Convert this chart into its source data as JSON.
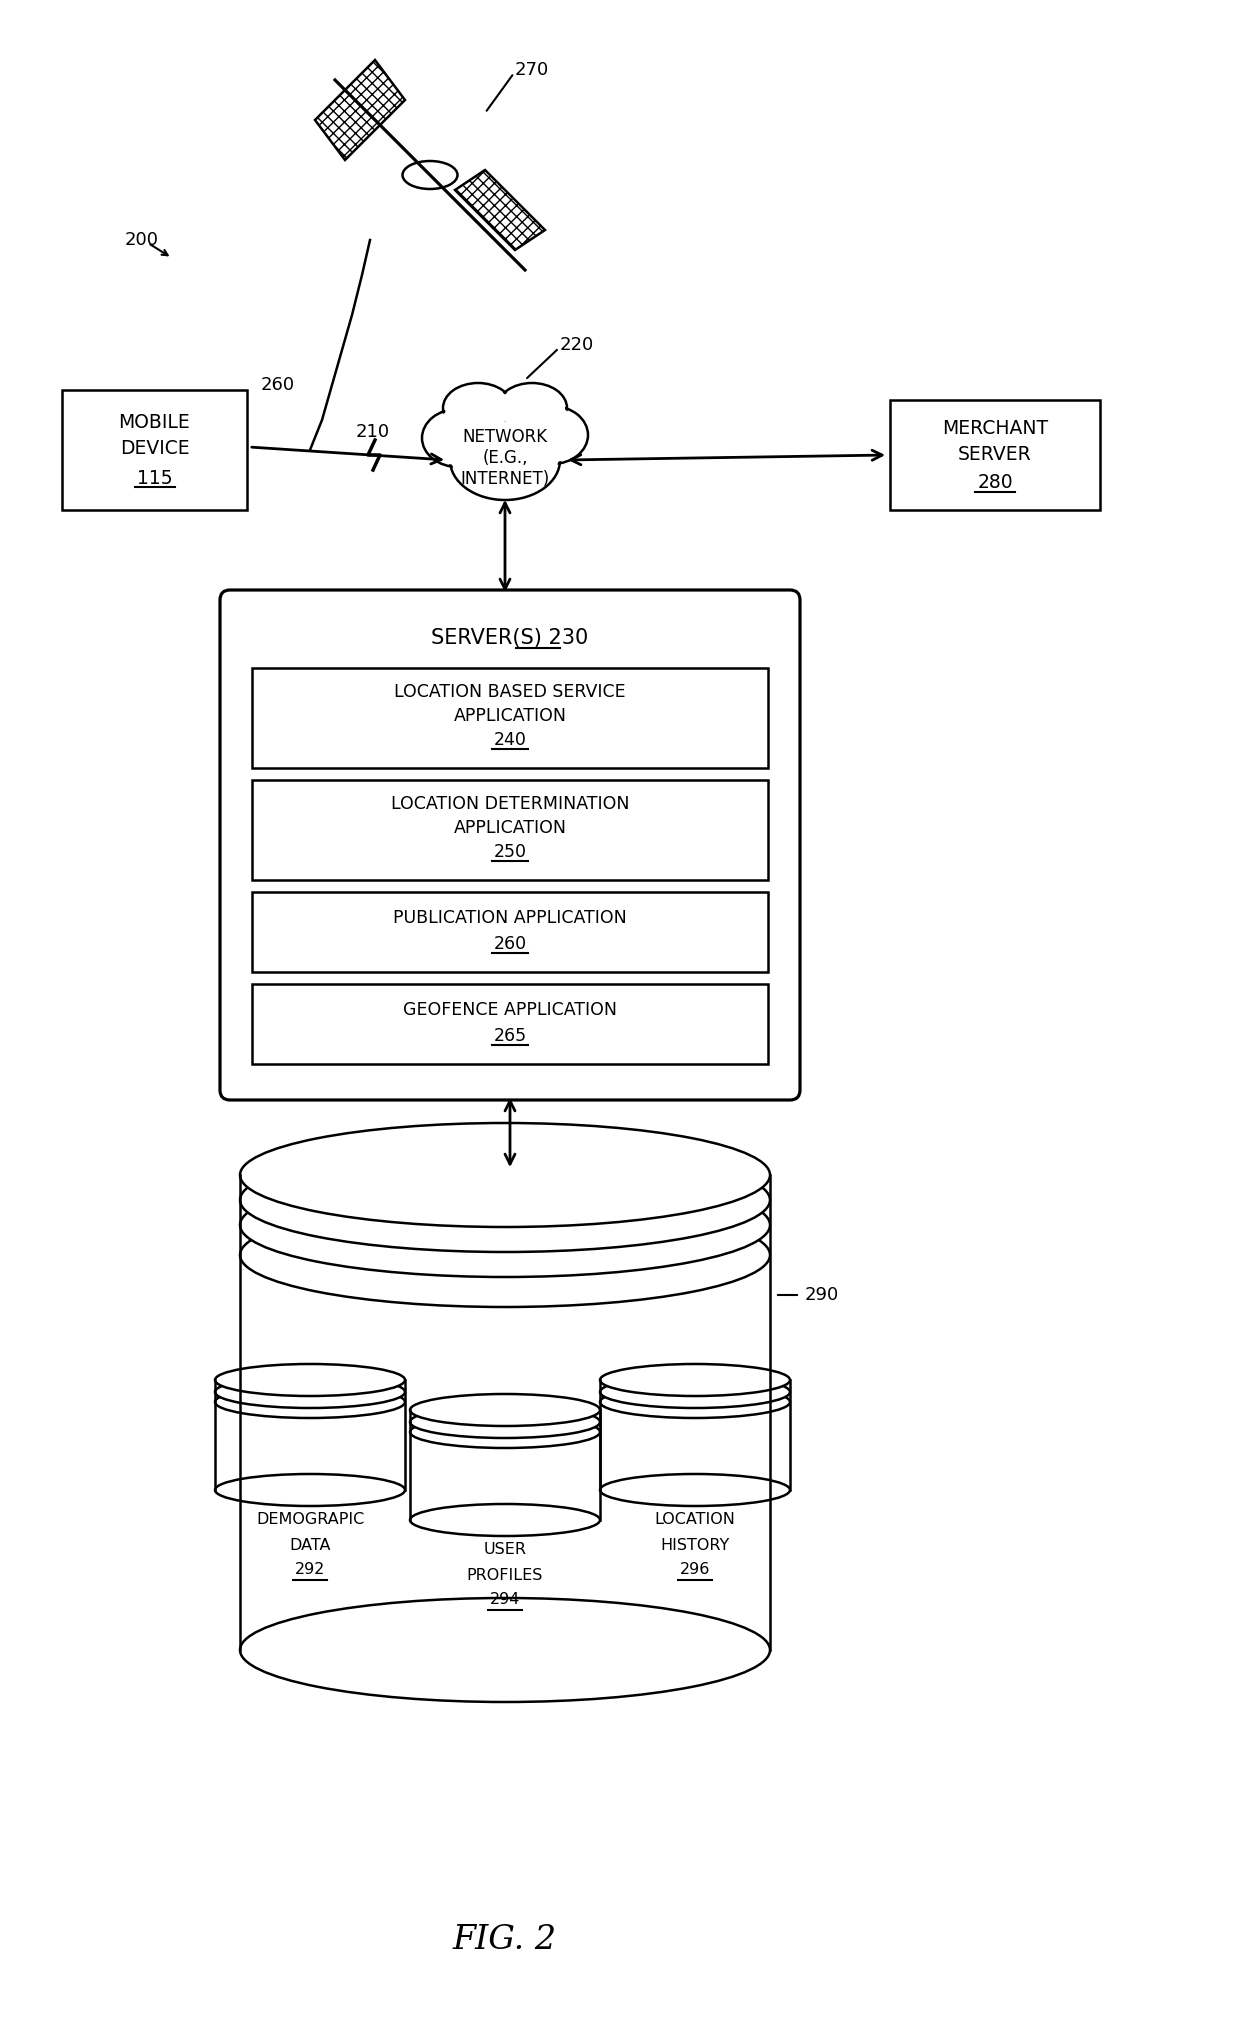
{
  "title": "FIG. 2",
  "bg_color": "#ffffff",
  "text_color": "#000000",
  "line_color": "#000000",
  "mobile_text1": "MOBILE",
  "mobile_text2": "DEVICE",
  "mobile_num": "115",
  "merchant_text1": "MERCHANT",
  "merchant_text2": "SERVER",
  "merchant_num": "280",
  "network_text1": "NETWORK",
  "network_text2": "(E.G.,",
  "network_text3": "INTERNET)",
  "network_num": "220",
  "server_title": "SERVER(S) ",
  "server_num": "230",
  "lbsa_line1": "LOCATION BASED SERVICE",
  "lbsa_line2": "APPLICATION",
  "lbsa_num": "240",
  "lda_line1": "LOCATION DETERMINATION",
  "lda_line2": "APPLICATION",
  "lda_num": "250",
  "pub_line1": "PUBLICATION APPLICATION",
  "pub_num": "260",
  "geo_line1": "GEOFENCE APPLICATION",
  "geo_num": "265",
  "db_num": "290",
  "demo_line1": "DEMOGRAPIC",
  "demo_line2": "DATA",
  "demo_num": "292",
  "user_line1": "USER",
  "user_line2": "PROFILES",
  "user_num": "294",
  "loc_line1": "LOCATION",
  "loc_line2": "HISTORY",
  "loc_num": "296",
  "label_200": "200",
  "label_210": "210",
  "label_260sig": "260",
  "label_270": "270",
  "fig_caption": "FIG. 2"
}
